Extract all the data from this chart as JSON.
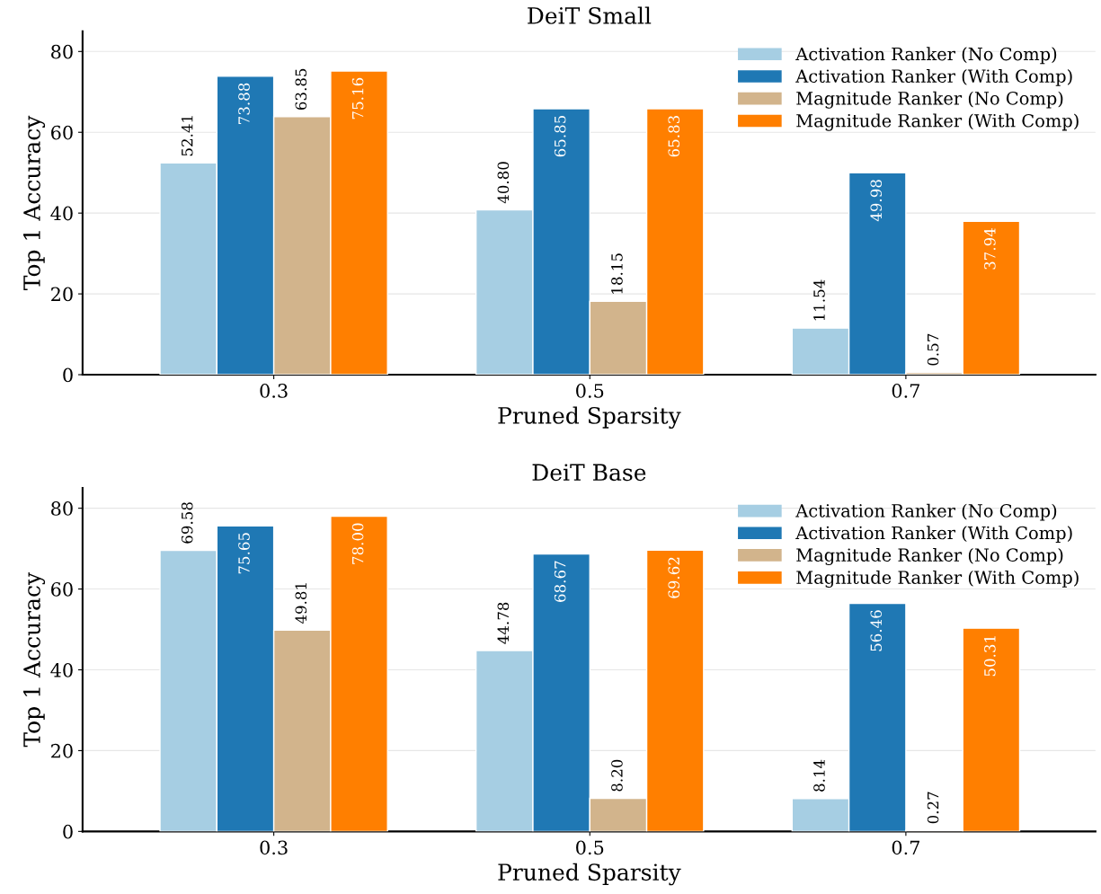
{
  "chart_data": [
    {
      "type": "bar",
      "title": "DeiT Small",
      "xlabel": "Pruned Sparsity",
      "ylabel": "Top 1 Accuracy",
      "categories": [
        "0.3",
        "0.5",
        "0.7"
      ],
      "series": [
        {
          "name": "Activation Ranker (No Comp)",
          "color": "#a6cee3",
          "values": [
            52.41,
            40.8,
            11.54
          ],
          "value_labels": [
            "52.41",
            "40.80",
            "11.54"
          ]
        },
        {
          "name": "Activation Ranker (With Comp)",
          "color": "#1f78b4",
          "values": [
            73.88,
            65.85,
            49.98
          ],
          "value_labels": [
            "73.88",
            "65.85",
            "49.98"
          ]
        },
        {
          "name": "Magnitude Ranker (No Comp)",
          "color": "#d2b48c",
          "values": [
            63.85,
            18.15,
            0.57
          ],
          "value_labels": [
            "63.85",
            "18.15",
            "0.57"
          ]
        },
        {
          "name": "Magnitude Ranker (With Comp)",
          "color": "#ff7f00",
          "values": [
            75.16,
            65.83,
            37.94
          ],
          "value_labels": [
            "75.16",
            "65.83",
            "37.94"
          ]
        }
      ],
      "ylim": [
        0,
        85
      ],
      "yticks": [
        0,
        20,
        40,
        60,
        80
      ],
      "grid": "y",
      "legend": "top right"
    },
    {
      "type": "bar",
      "title": "DeiT Base",
      "xlabel": "Pruned Sparsity",
      "ylabel": "Top 1 Accuracy",
      "categories": [
        "0.3",
        "0.5",
        "0.7"
      ],
      "series": [
        {
          "name": "Activation Ranker (No Comp)",
          "color": "#a6cee3",
          "values": [
            69.58,
            44.78,
            8.14
          ],
          "value_labels": [
            "69.58",
            "44.78",
            "8.14"
          ]
        },
        {
          "name": "Activation Ranker (With Comp)",
          "color": "#1f78b4",
          "values": [
            75.65,
            68.67,
            56.46
          ],
          "value_labels": [
            "75.65",
            "68.67",
            "56.46"
          ]
        },
        {
          "name": "Magnitude Ranker (No Comp)",
          "color": "#d2b48c",
          "values": [
            49.81,
            8.2,
            0.27
          ],
          "value_labels": [
            "49.81",
            "8.20",
            "0.27"
          ]
        },
        {
          "name": "Magnitude Ranker (With Comp)",
          "color": "#ff7f00",
          "values": [
            78.0,
            69.62,
            50.31
          ],
          "value_labels": [
            "78.00",
            "69.62",
            "50.31"
          ]
        }
      ],
      "ylim": [
        0,
        85
      ],
      "yticks": [
        0,
        20,
        40,
        60,
        80
      ],
      "grid": "y",
      "legend": "top right"
    }
  ]
}
